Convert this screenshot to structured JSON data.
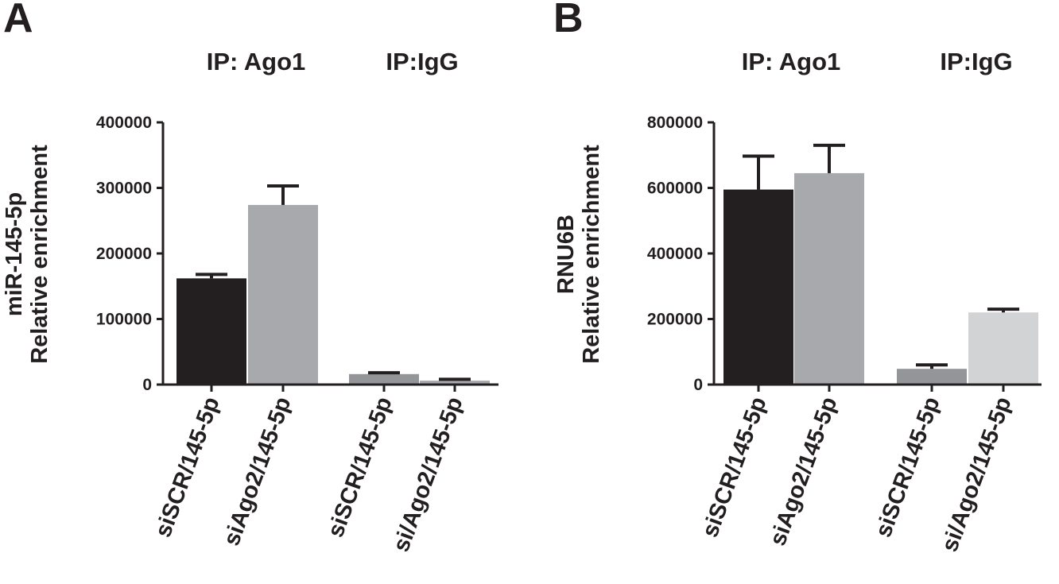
{
  "chart_data": [
    {
      "type": "bar",
      "panel": "A",
      "group_labels": [
        "IP: Ago1",
        "IP:IgG"
      ],
      "ylabel_line1": "miR-145-5p",
      "ylabel_line2": "Relative enrichment",
      "ylim": [
        0,
        400000
      ],
      "yticks": [
        0,
        100000,
        200000,
        300000,
        400000
      ],
      "ytick_labels": [
        "0",
        "100000",
        "200000",
        "300000",
        "400000"
      ],
      "categories": [
        "siSCR/145-5p",
        "siAgo2/145-5p",
        "siSCR/145-5p",
        "si/Ago2/145-5p"
      ],
      "values": [
        162000,
        274000,
        16000,
        6000
      ],
      "errors": [
        6000,
        29000,
        2000,
        2000
      ],
      "colors": [
        "#231f20",
        "#a7a9ac",
        "#939598",
        "#a7a9ac"
      ]
    },
    {
      "type": "bar",
      "panel": "B",
      "group_labels": [
        "IP: Ago1",
        "IP:IgG"
      ],
      "ylabel_line1": "RNU6B",
      "ylabel_line2": "Relative enrichment",
      "ylim": [
        0,
        800000
      ],
      "yticks": [
        0,
        200000,
        400000,
        600000,
        800000
      ],
      "ytick_labels": [
        "0",
        "200000",
        "400000",
        "600000",
        "800000"
      ],
      "categories": [
        "siSCR/145-5p",
        "siAgo2/145-5p",
        "siSCR/145-5p",
        "si/Ago2/145-5p"
      ],
      "values": [
        595000,
        645000,
        48000,
        220000
      ],
      "errors": [
        102000,
        85000,
        12000,
        10000
      ],
      "colors": [
        "#231f20",
        "#a7a9ac",
        "#939598",
        "#d1d3d4"
      ]
    }
  ]
}
